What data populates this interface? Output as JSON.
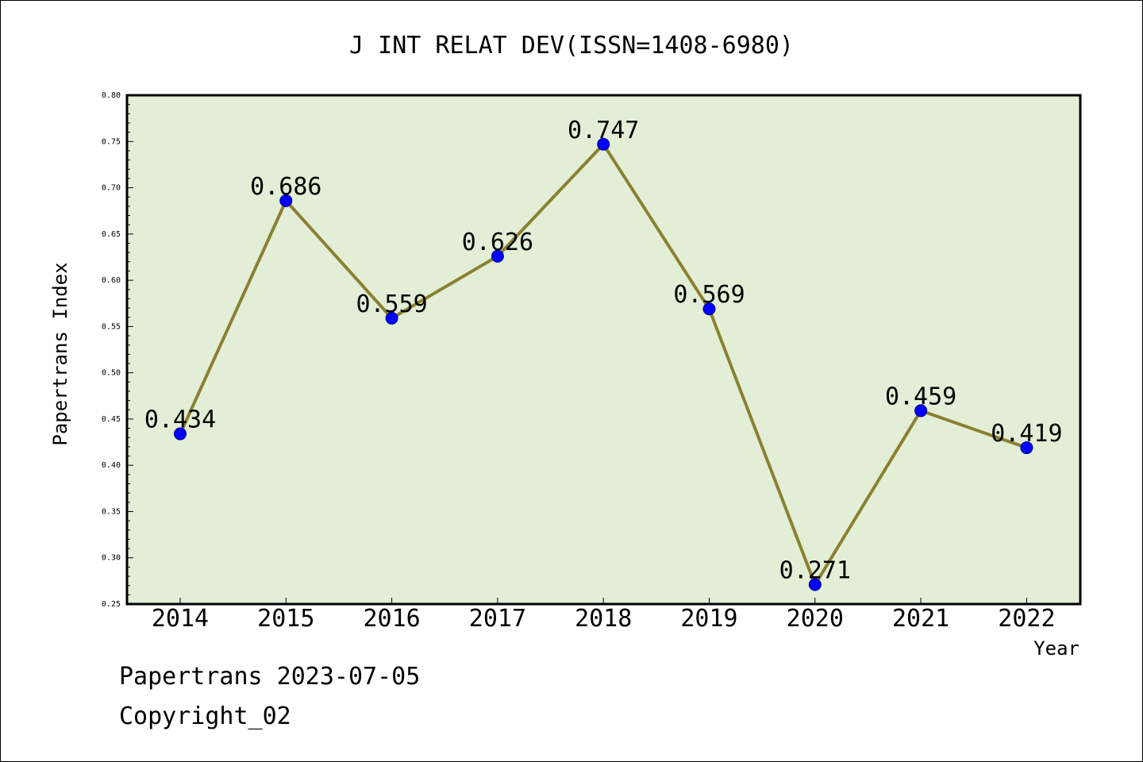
{
  "footer": {
    "line1": "Papertrans 2023-07-05",
    "line2": "Copyright_02"
  },
  "colors": {
    "plot_background": "#e2efd6",
    "line": "#8b8032",
    "marker_fill": "#0000ff",
    "marker_stroke": "#00008b"
  },
  "chart_data": {
    "type": "line",
    "title": "J INT RELAT DEV(ISSN=1408-6980)",
    "xlabel": "Year",
    "ylabel": "Papertrans Index",
    "categories": [
      "2014",
      "2015",
      "2016",
      "2017",
      "2018",
      "2019",
      "2020",
      "2021",
      "2022"
    ],
    "series": [
      {
        "values": [
          0.434,
          0.686,
          0.559,
          0.626,
          0.747,
          0.569,
          0.271,
          0.459,
          0.419
        ],
        "labels": [
          "0.434",
          "0.686",
          "0.559",
          "0.626",
          "0.747",
          "0.569",
          "0.271",
          "0.459",
          "0.419"
        ]
      }
    ],
    "ylim": [
      0.25,
      0.8
    ],
    "yticks": [
      "0.25",
      "0.30",
      "0.35",
      "0.40",
      "0.45",
      "0.50",
      "0.55",
      "0.60",
      "0.65",
      "0.70",
      "0.75",
      "0.80"
    ],
    "grid": false,
    "legend": "none"
  }
}
